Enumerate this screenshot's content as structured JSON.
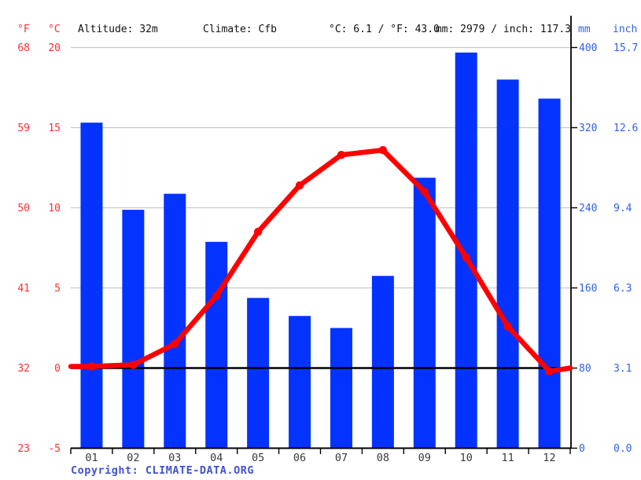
{
  "header": {
    "f_label": "°F",
    "c_label": "°C",
    "altitude": "Altitude: 32m",
    "climate": "Climate: Cfb",
    "temp_summary": "°C: 6.1 / °F: 43.0",
    "precip_summary": "mm: 2979 / inch: 117.3",
    "mm_label": "mm",
    "inch_label": "inch"
  },
  "axes": {
    "left_f_ticks": [
      "68",
      "59",
      "50",
      "41",
      "32",
      "23"
    ],
    "left_c_ticks": [
      "20",
      "15",
      "10",
      "5",
      "0",
      "-5"
    ],
    "right_mm_ticks": [
      "400",
      "320",
      "240",
      "160",
      "80",
      "0"
    ],
    "right_inch_ticks": [
      "15.7",
      "12.6",
      "9.4",
      "6.3",
      "3.1",
      "0.0"
    ]
  },
  "chart_data": {
    "type": "bar",
    "subtype": "climograph (bar + line, dual axis)",
    "categories": [
      "01",
      "02",
      "03",
      "04",
      "05",
      "06",
      "07",
      "08",
      "09",
      "10",
      "11",
      "12"
    ],
    "series": [
      {
        "name": "Precipitation",
        "type": "bar",
        "unit": "mm",
        "values": [
          325,
          238,
          254,
          206,
          150,
          132,
          120,
          172,
          270,
          395,
          368,
          349
        ]
      },
      {
        "name": "Temperature",
        "type": "line",
        "unit": "°C",
        "values": [
          0.1,
          0.2,
          1.5,
          4.5,
          8.5,
          11.4,
          13.3,
          13.6,
          11.0,
          6.9,
          2.6,
          -0.2
        ]
      }
    ],
    "line_edge_extension": {
      "left_c": 0.1,
      "right_c": 0.0
    },
    "precip_axis": {
      "mm_range": [
        0,
        400
      ],
      "inch_range": [
        0.0,
        15.7
      ],
      "ticks_mm": [
        0,
        80,
        160,
        240,
        320,
        400
      ]
    },
    "temp_axis": {
      "c_range": [
        -5,
        20
      ],
      "f_range": [
        23,
        68
      ],
      "ticks_c": [
        -5,
        0,
        5,
        10,
        15,
        20
      ]
    },
    "zero_line_c": 0,
    "grid": true,
    "legend_position": "none",
    "annual_mean_c": 6.1,
    "annual_precip_mm": 2979
  },
  "footer": {
    "copyright": "Copyright: CLIMATE-DATA.ORG"
  },
  "colors": {
    "bar": "#0433ff",
    "line": "#ff0000",
    "red_labels": "#ff2e2e",
    "blue_labels": "#3060ee",
    "month_labels": "#3a3a3a",
    "grid": "#c9c9c9",
    "axis": "#000000",
    "copyright": "#4152cf"
  }
}
